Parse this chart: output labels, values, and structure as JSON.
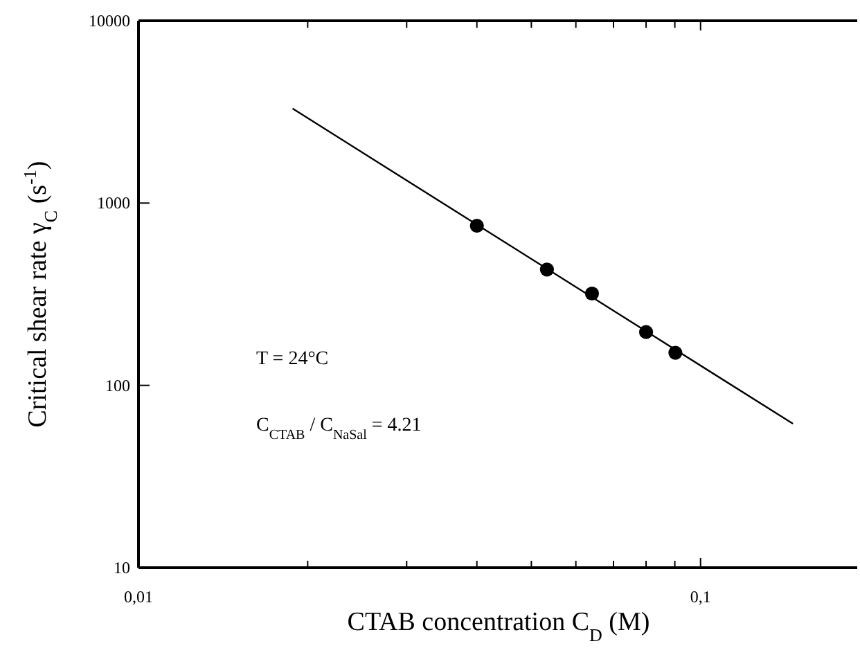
{
  "chart_data": {
    "type": "scatter",
    "xlabel": "CTAB  concentration C$_{D}$  (M)",
    "ylabel": "Critical shear rate  γ$_{C}$  (s$^{-1}$)",
    "log": "xy",
    "xlim": [
      0.01,
      0.19
    ],
    "ylim": [
      10,
      10000
    ],
    "xticks": [
      {
        "value": 0.01,
        "label": "0,01"
      },
      {
        "value": 0.02,
        "label": null
      },
      {
        "value": 0.03,
        "label": null
      },
      {
        "value": 0.04,
        "label": null
      },
      {
        "value": 0.05,
        "label": null
      },
      {
        "value": 0.06,
        "label": null
      },
      {
        "value": 0.07,
        "label": null
      },
      {
        "value": 0.08,
        "label": null
      },
      {
        "value": 0.09,
        "label": null
      },
      {
        "value": 0.1,
        "label": "0,1"
      }
    ],
    "yticks": [
      10,
      100,
      1000,
      10000
    ],
    "annotations": [
      "T = 24°C",
      "C$_{CTAB}$ / C$_{NaSal}$ =   4.21"
    ],
    "series": [
      {
        "color": "#000000",
        "marker": "circle",
        "x": [
          0.04,
          0.0533,
          0.0641,
          0.08,
          0.0902
        ],
        "values": [
          751,
          432,
          319,
          196,
          151
        ]
      },
      {
        "type": "line",
        "color": "#000000",
        "marker": "none",
        "line_style": "solid",
        "x": [
          0.0188,
          0.146
        ],
        "values": [
          3300,
          61.6
        ]
      }
    ]
  }
}
